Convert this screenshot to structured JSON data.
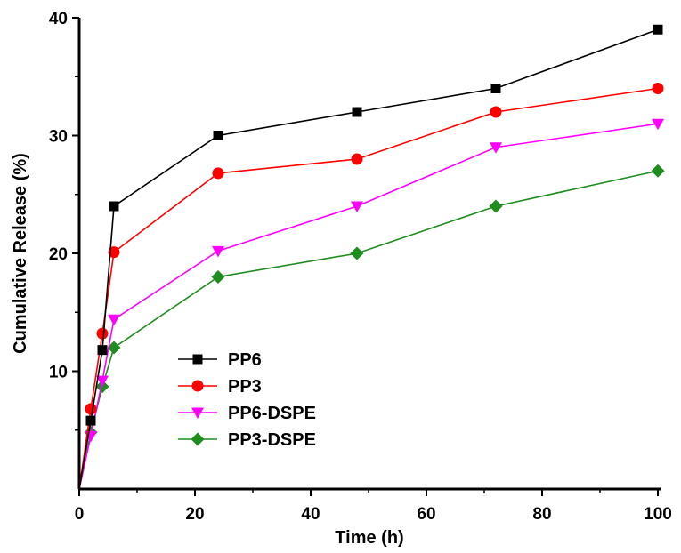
{
  "chart_data": {
    "type": "line",
    "title": "",
    "xlabel": "Time (h)",
    "ylabel": "Cumulative Release (%)",
    "xlim": [
      0,
      100
    ],
    "ylim": [
      0,
      40
    ],
    "xticks": [
      0,
      20,
      40,
      60,
      80,
      100
    ],
    "yticks": [
      10,
      20,
      30,
      40
    ],
    "grid": false,
    "legend_position": "center-left",
    "series": [
      {
        "name": "PP6",
        "color": "#000000",
        "marker": "square",
        "x": [
          0,
          2,
          4,
          6,
          24,
          48,
          72,
          100
        ],
        "y": [
          0,
          5.8,
          11.8,
          24,
          30,
          32,
          34,
          39
        ]
      },
      {
        "name": "PP3",
        "color": "#ff0000",
        "marker": "circle",
        "x": [
          0,
          2,
          4,
          6,
          24,
          48,
          72,
          100
        ],
        "y": [
          0,
          6.8,
          13.2,
          20.1,
          26.8,
          28,
          32,
          34
        ]
      },
      {
        "name": "PP6-DSPE",
        "color": "#ff00ff",
        "marker": "triangle-down",
        "x": [
          0,
          2,
          4,
          6,
          24,
          48,
          72,
          100
        ],
        "y": [
          0,
          4.5,
          9.2,
          14.4,
          20.2,
          24,
          29,
          31
        ]
      },
      {
        "name": "PP3-DSPE",
        "color": "#1e8c1e",
        "marker": "diamond",
        "x": [
          0,
          2,
          4,
          6,
          24,
          48,
          72,
          100
        ],
        "y": [
          0,
          4.8,
          8.7,
          12,
          18,
          20,
          24,
          27
        ]
      }
    ]
  }
}
